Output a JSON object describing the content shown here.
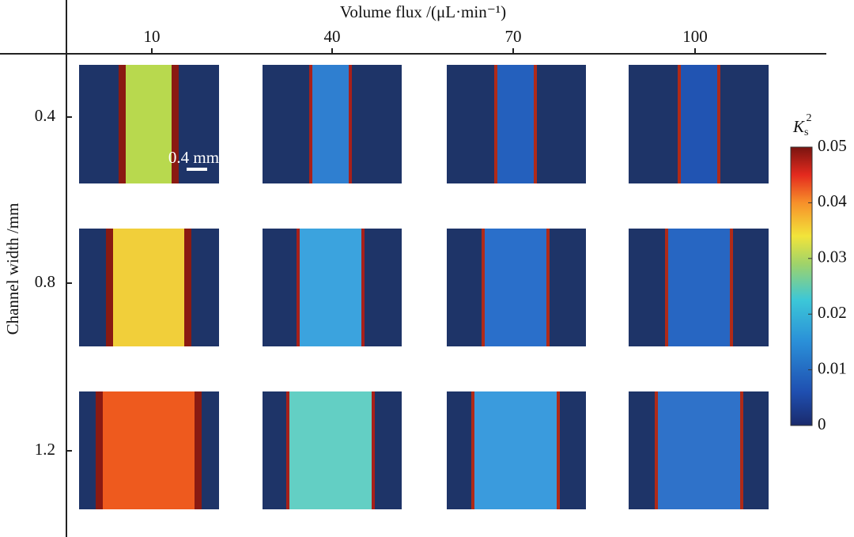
{
  "figure": {
    "x_label": "Volume flux /(μL·min⁻¹)",
    "y_label": "Channel width /mm",
    "columns": [
      "10",
      "40",
      "70",
      "100"
    ],
    "rows": [
      "0.4",
      "0.8",
      "1.2"
    ],
    "scale_bar": "0.4 mm",
    "colorbar": {
      "label": {
        "symbol": "K",
        "subscript": "s",
        "superscript": "2"
      },
      "lim": [
        0,
        0.05
      ],
      "ticks": [
        0,
        0.01,
        0.02,
        0.03,
        0.04,
        0.05
      ]
    }
  }
}
